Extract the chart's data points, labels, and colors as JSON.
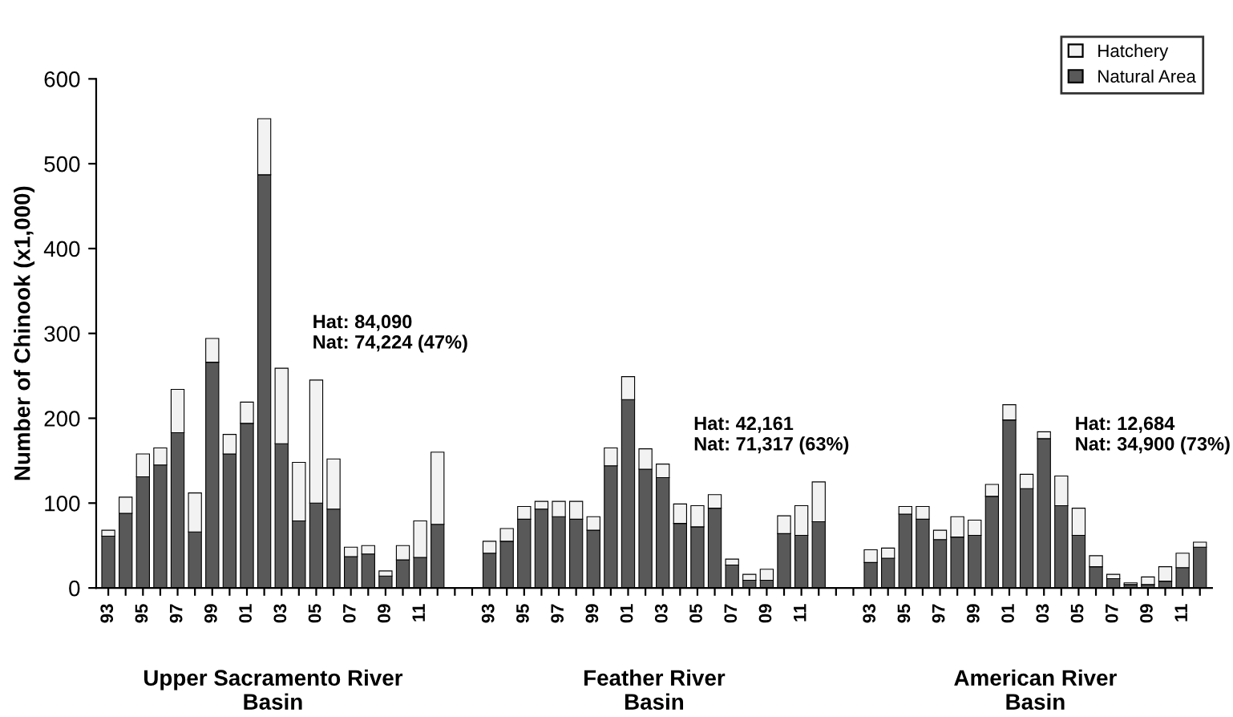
{
  "chart_data": {
    "type": "bar",
    "stacked": true,
    "ylabel": "Number of Chinook (x1,000)",
    "categories": [
      "93",
      null,
      "95",
      null,
      "97",
      null,
      "99",
      null,
      "01",
      null,
      "03",
      null,
      "05",
      null,
      "07",
      null,
      "09",
      null,
      "11",
      null,
      null,
      null,
      "93",
      null,
      "95",
      null,
      "97",
      null,
      "99",
      null,
      "01",
      null,
      "03",
      null,
      "05",
      null,
      "07",
      null,
      "09",
      null,
      "11",
      null,
      null,
      null,
      "93",
      null,
      "95",
      null,
      "97",
      null,
      "99",
      null,
      "01",
      null,
      "03",
      null,
      "05",
      null,
      "07",
      null,
      "09",
      null,
      "11",
      null
    ],
    "series": [
      {
        "name": "Natural Area",
        "color": "#595959",
        "values": [
          61,
          88,
          131,
          145,
          183,
          66,
          266,
          158,
          194,
          487,
          170,
          79,
          100,
          93,
          37,
          40,
          14,
          33,
          36,
          75,
          null,
          null,
          41,
          55,
          81,
          93,
          84,
          81,
          68,
          144,
          222,
          140,
          130,
          76,
          72,
          94,
          27,
          9,
          9,
          64,
          62,
          78,
          null,
          null,
          30,
          35,
          87,
          81,
          57,
          60,
          62,
          108,
          198,
          117,
          176,
          97,
          62,
          25,
          11,
          4,
          4,
          8,
          24,
          48
        ]
      },
      {
        "name": "Hatchery",
        "color": "#f2f2f2",
        "values": [
          7,
          19,
          27,
          20,
          51,
          46,
          28,
          23,
          25,
          66,
          89,
          69,
          145,
          59,
          11,
          10,
          6,
          17,
          43,
          85,
          null,
          null,
          14,
          15,
          15,
          9,
          18,
          21,
          16,
          21,
          27,
          24,
          16,
          23,
          25,
          16,
          7,
          7,
          13,
          21,
          35,
          47,
          null,
          null,
          15,
          12,
          9,
          15,
          11,
          24,
          18,
          14,
          18,
          17,
          8,
          35,
          32,
          13,
          5,
          2,
          9,
          17,
          17,
          6
        ]
      }
    ],
    "ylim": [
      0,
      600
    ],
    "yticks": [
      0,
      100,
      200,
      300,
      400,
      500,
      600
    ],
    "legend": "top right",
    "annotations": [
      "Upper Sacramento River\nBasin",
      "Feather River\nBasin",
      "American River\nBasin",
      "Hat: 84,090\nNat: 74,224 (47%)",
      "Hat: 42,161\nNat: 71,317 (63%)",
      "Hat: 12,684\nNat: 34,900 (73%)"
    ]
  }
}
